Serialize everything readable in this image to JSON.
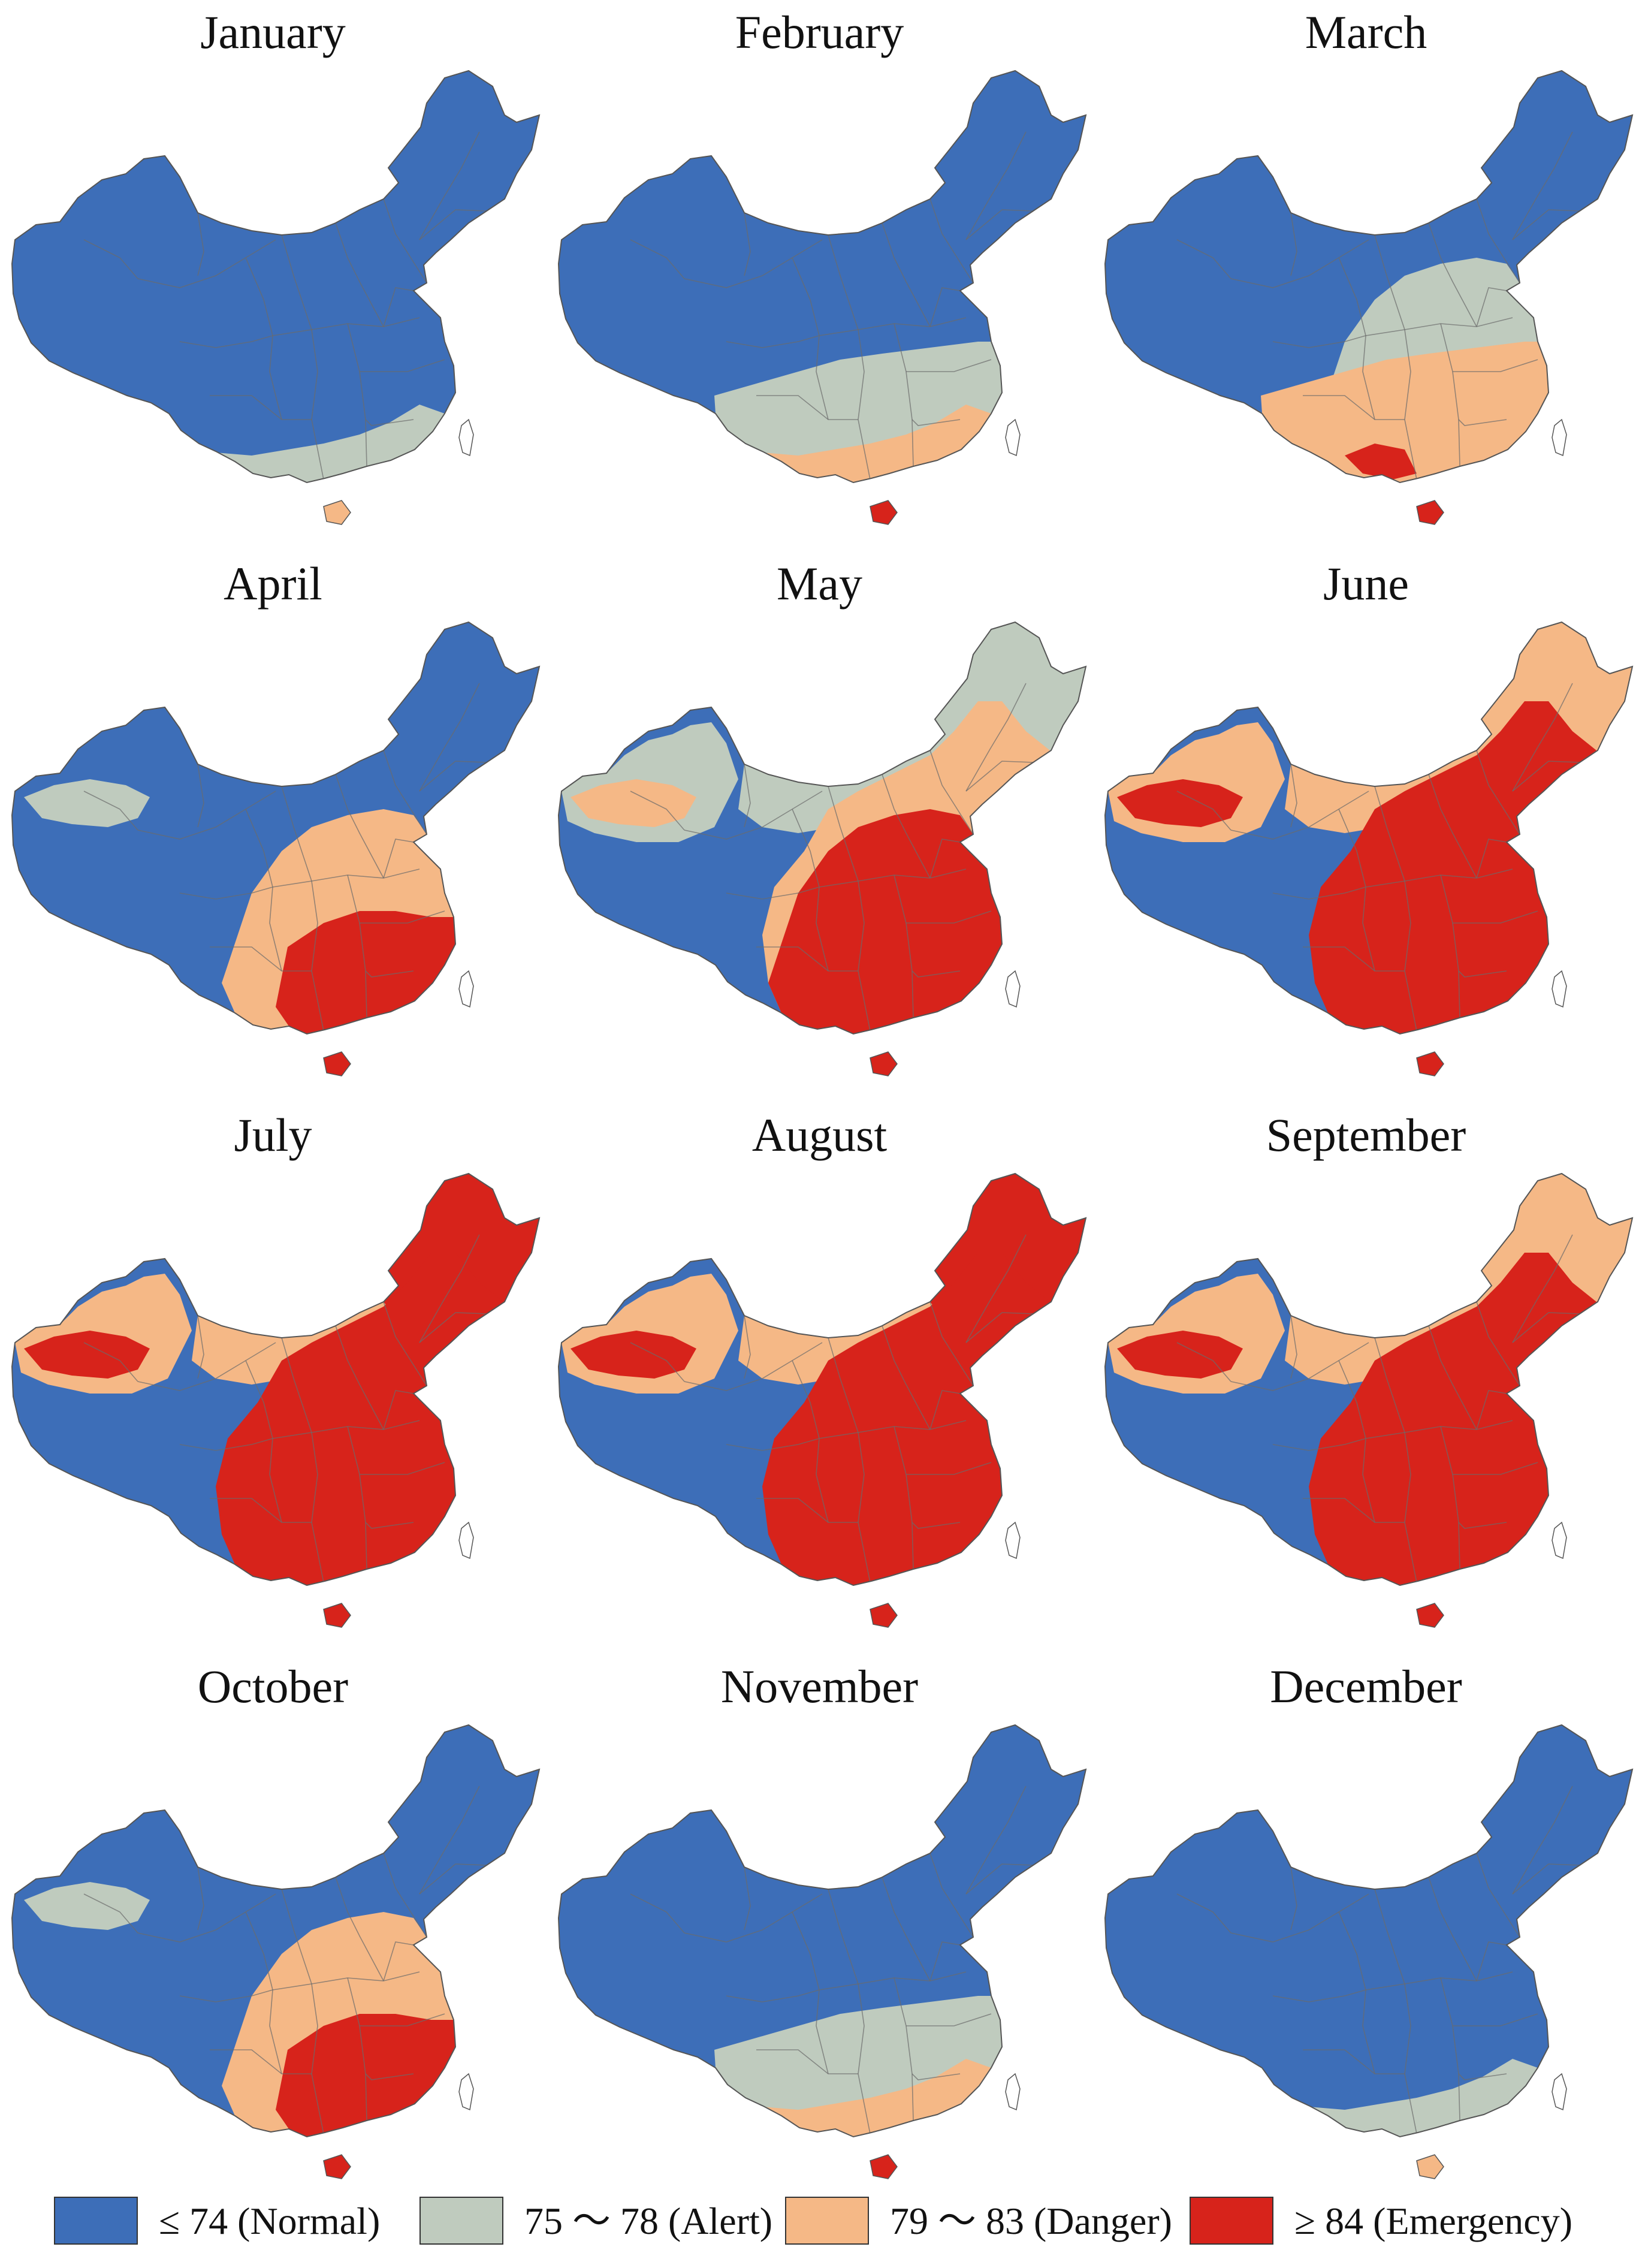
{
  "colors": {
    "normal": "#3D6EB8",
    "alert": "#BFCBBE",
    "danger": "#F5B886",
    "emergency": "#D7231B",
    "border": "#6b6b6b"
  },
  "panels": [
    {
      "month": "January",
      "level": 0
    },
    {
      "month": "February",
      "level": 1
    },
    {
      "month": "March",
      "level": 2
    },
    {
      "month": "April",
      "level": 3
    },
    {
      "month": "May",
      "level": 4
    },
    {
      "month": "June",
      "level": 5
    },
    {
      "month": "July",
      "level": 6
    },
    {
      "month": "August",
      "level": 6
    },
    {
      "month": "September",
      "level": 5
    },
    {
      "month": "October",
      "level": 3
    },
    {
      "month": "November",
      "level": 1
    },
    {
      "month": "December",
      "level": 0
    }
  ],
  "legend": [
    {
      "key": "normal",
      "label": "≤ 74 (Normal)"
    },
    {
      "key": "alert",
      "label": "75 ～ 78 (Alert)"
    },
    {
      "key": "danger",
      "label": "79 ～ 83 (Danger)"
    },
    {
      "key": "emergency",
      "label": "≥ 84 (Emergency)"
    }
  ]
}
